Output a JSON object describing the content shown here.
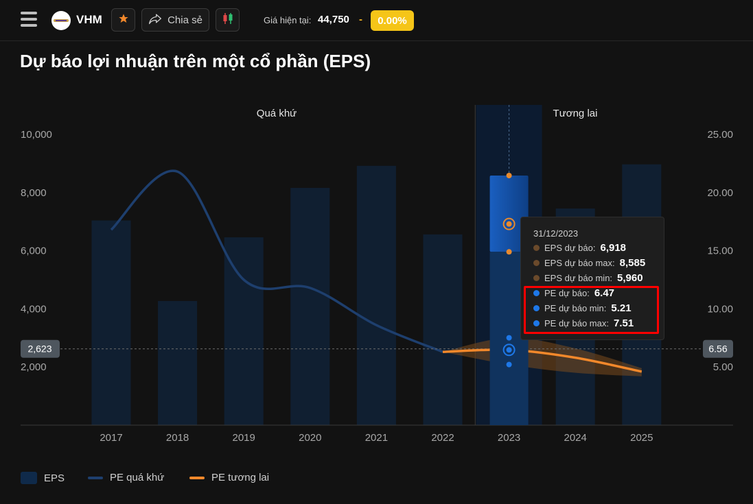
{
  "header": {
    "ticker": "VHM",
    "share_label": "Chia sẻ",
    "price_label": "Giá hiện tại:",
    "price_value": "44,750",
    "price_separator": "-",
    "price_change": "0.00%",
    "badge_color": "#f5c518",
    "icons": [
      "menu-icon",
      "logo-icon",
      "star-icon",
      "share-icon",
      "candlestick-icon"
    ]
  },
  "page_title": "Dự báo lợi nhuận trên một cổ phần (EPS)",
  "chart_data": {
    "type": "bar",
    "categories": [
      "2017",
      "2018",
      "2019",
      "2020",
      "2021",
      "2022",
      "2023",
      "2024",
      "2025"
    ],
    "section_labels": {
      "past": "Quá khứ",
      "future": "Tương lai"
    },
    "left_axis": {
      "ylim": [
        0,
        11000
      ],
      "ticks": [
        "10,000",
        "8,000",
        "6,000",
        "4,000",
        "2,000"
      ]
    },
    "right_axis": {
      "ylim": [
        0,
        27.5
      ],
      "ticks": [
        "25.00",
        "20.00",
        "15.00",
        "10.00",
        "5.00"
      ]
    },
    "series": [
      {
        "name": "EPS",
        "kind": "bar",
        "axis": "left",
        "color": "#0f2a4a",
        "values": [
          7040,
          4270,
          6460,
          8160,
          8920,
          6560,
          6918,
          7450,
          8970
        ]
      },
      {
        "name": "PE quá khứ",
        "kind": "line",
        "axis": "right",
        "color": "#1e3f6e",
        "x": [
          "2017",
          "2018",
          "2019",
          "2020",
          "2021",
          "2022"
        ],
        "values": [
          16.8,
          21.8,
          12.5,
          11.8,
          8.6,
          6.3
        ]
      },
      {
        "name": "PE tương lai",
        "kind": "line",
        "axis": "right",
        "color": "#f2882b",
        "x": [
          "2022",
          "2023",
          "2024",
          "2025"
        ],
        "values": [
          6.3,
          6.47,
          5.8,
          4.6
        ],
        "band_low": [
          6.3,
          5.21,
          4.5,
          4.2
        ],
        "band_high": [
          6.3,
          7.51,
          6.6,
          4.9
        ]
      }
    ],
    "eps_forecast_2023": {
      "value": 6918,
      "max": 8585,
      "min": 5960
    },
    "reference_line": {
      "eps_label": "2,623",
      "pe_label": "6.56",
      "pe_value": 6.56
    },
    "highlighted_category": "2023",
    "tooltip": {
      "date": "31/12/2023",
      "rows": [
        {
          "label": "EPS dự báo:",
          "value": "6,918",
          "color": "#6b4a2b"
        },
        {
          "label": "EPS dự báo max:",
          "value": "8,585",
          "color": "#6b4a2b"
        },
        {
          "label": "EPS dự báo min:",
          "value": "5,960",
          "color": "#6b4a2b"
        },
        {
          "label": "PE dự báo:",
          "value": "6.47",
          "color": "#1e78e8"
        },
        {
          "label": "PE dự báo min:",
          "value": "5.21",
          "color": "#1e78e8"
        },
        {
          "label": "PE dự báo max:",
          "value": "7.51",
          "color": "#1e78e8"
        }
      ]
    },
    "legend": [
      {
        "label": "EPS",
        "color": "#0f2a4a"
      },
      {
        "label": "PE quá khứ",
        "color": "#1e3f6e"
      },
      {
        "label": "PE tương lai",
        "color": "#f2882b"
      }
    ]
  }
}
